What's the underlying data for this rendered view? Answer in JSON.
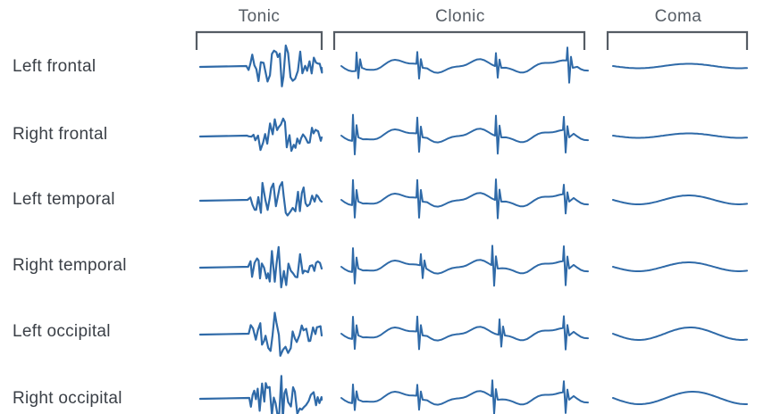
{
  "phases": [
    {
      "label": "Tonic",
      "style": "tonic"
    },
    {
      "label": "Clonic",
      "style": "clonic"
    },
    {
      "label": "Coma",
      "style": "coma"
    }
  ],
  "channels": [
    {
      "label": "Left frontal"
    },
    {
      "label": "Right frontal"
    },
    {
      "label": "Left temporal"
    },
    {
      "label": "Right temporal"
    },
    {
      "label": "Left occipital"
    },
    {
      "label": "Right occipital"
    }
  ],
  "colors": {
    "trace": "#2f6aa8",
    "bracket": "#555c64",
    "label": "#3b4047"
  }
}
